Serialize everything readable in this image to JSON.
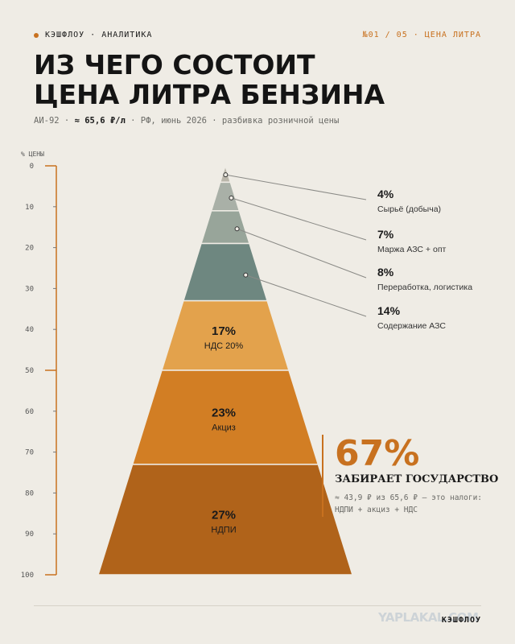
{
  "header": {
    "brand": "КЭШФЛОУ · АНАЛИТИКА",
    "counter": "№01 / 05 · ЦЕНА ЛИТРА",
    "title_line1": "ИЗ ЧЕГО СОСТОИТ",
    "title_line2": "ЦЕНА ЛИТРА БЕНЗИНА",
    "subtitle_pre": "АИ-92 ·",
    "subtitle_price": "≈ 65,6 ₽/л",
    "subtitle_post": "· РФ, июнь 2026 · разбивка розничной цены"
  },
  "colors": {
    "accent": "#c8711f",
    "background": "#efece5"
  },
  "chart_data": {
    "type": "pyramid",
    "ylabel": "% ЦЕНЫ",
    "ylim": [
      0,
      100
    ],
    "y_ticks": [
      "0",
      "10",
      "20",
      "30",
      "40",
      "50",
      "60",
      "70",
      "80",
      "90",
      "100"
    ],
    "segments": [
      {
        "value": 4,
        "value_label": "4%",
        "label": "Сырьё (добыча)",
        "color": "#bab6aa",
        "callout": true
      },
      {
        "value": 7,
        "value_label": "7%",
        "label": "Маржа АЗС + опт",
        "color": "#a9b0a7",
        "callout": true
      },
      {
        "value": 8,
        "value_label": "8%",
        "label": "Переработка, логистика",
        "color": "#98a59a",
        "callout": true
      },
      {
        "value": 14,
        "value_label": "14%",
        "label": "Содержание АЗС",
        "color": "#6e8780",
        "callout": true
      },
      {
        "value": 17,
        "value_label": "17%",
        "label": "НДС 20%",
        "color": "#e3a24c",
        "callout": false
      },
      {
        "value": 23,
        "value_label": "23%",
        "label": "Акциз",
        "color": "#d27e24",
        "callout": false
      },
      {
        "value": 27,
        "value_label": "27%",
        "label": "НДПИ",
        "color": "#b0631a",
        "callout": false
      }
    ]
  },
  "government": {
    "percent": "67%",
    "label": "ЗАБИРАЕТ ГОСУДАРСТВО",
    "note": "≈ 43,9 ₽ из 65,6 ₽ — это налоги: НДПИ + акциз + НДС"
  },
  "footer": {
    "brand": "КЭШФЛОУ",
    "watermark": "YAPLAKAL.COM"
  }
}
